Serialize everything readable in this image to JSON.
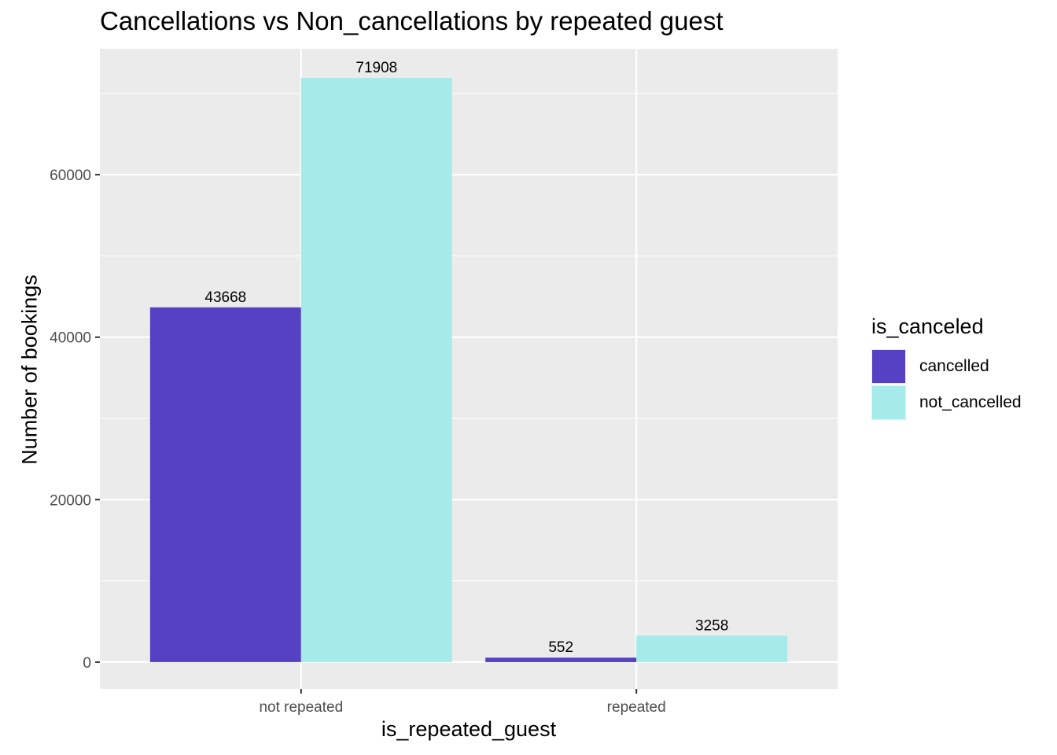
{
  "chart_data": {
    "type": "bar",
    "title": "Cancellations vs Non_cancellations by repeated guest",
    "xlabel": "is_repeated_guest",
    "ylabel": "Number of bookings",
    "categories": [
      "not repeated",
      "repeated"
    ],
    "series": [
      {
        "name": "cancelled",
        "color": "#5541c2",
        "values": [
          43668,
          552
        ]
      },
      {
        "name": "not_cancelled",
        "color": "#a4ebea",
        "values": [
          71908,
          3258
        ]
      }
    ],
    "ylim": [
      -3300,
      75500
    ],
    "yticks": [
      0,
      20000,
      40000,
      60000
    ],
    "ytick_labels": [
      "0",
      "20000",
      "40000",
      "60000"
    ],
    "grid": true,
    "legend": {
      "title": "is_canceled",
      "position": "right"
    }
  }
}
